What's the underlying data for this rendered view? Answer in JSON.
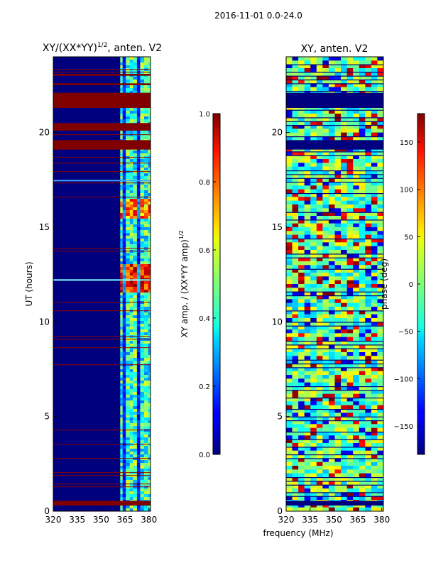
{
  "page": {
    "suptitle": "2016-11-01 0.0-24.0",
    "shared_xlabel": "frequency (MHz)"
  },
  "chart_data": [
    {
      "type": "heatmap",
      "title": "XY/(XX*YY)^1/2, anten. V2",
      "title_main": "XY/(XX*YY)",
      "title_exp": "1/2",
      "title_tail": ", anten. V2",
      "xlabel": "",
      "ylabel": "UT (hours)",
      "xlim": [
        320,
        381
      ],
      "ylim": [
        0,
        24
      ],
      "xticks": [
        320,
        335,
        350,
        365,
        380
      ],
      "yticks": [
        0,
        5,
        10,
        15,
        20
      ],
      "colormap": "jet",
      "colorbar": {
        "label_main": "XY amp. / (XX*YY amp)",
        "label_exp": "1/2",
        "range": [
          0.0,
          1.0
        ],
        "ticks": [
          "0.0",
          "0.2",
          "0.4",
          "0.6",
          "0.8",
          "1.0"
        ]
      },
      "saturated_time_bands_hours": [
        [
          0.3,
          0.55
        ],
        [
          20.1,
          20.5
        ],
        [
          19.1,
          19.6
        ],
        [
          21.3,
          22.1
        ],
        [
          22.5,
          22.6
        ],
        [
          23.0,
          23.1
        ]
      ],
      "high_amplitude_freq_band_mhz": [
        362,
        380
      ]
    },
    {
      "type": "heatmap",
      "title": "XY, anten. V2",
      "xlabel": "frequency (MHz)",
      "ylabel": "",
      "xlim": [
        320,
        381
      ],
      "ylim": [
        0,
        24
      ],
      "xticks": [
        320,
        335,
        350,
        365,
        380
      ],
      "yticks": [
        0,
        5,
        10,
        15,
        20
      ],
      "colormap": "jet",
      "colorbar": {
        "label": "phase (deg)",
        "range": [
          -180,
          180
        ],
        "ticks": [
          "−150",
          "−100",
          "−50",
          "0",
          "50",
          "100",
          "150"
        ]
      }
    }
  ]
}
